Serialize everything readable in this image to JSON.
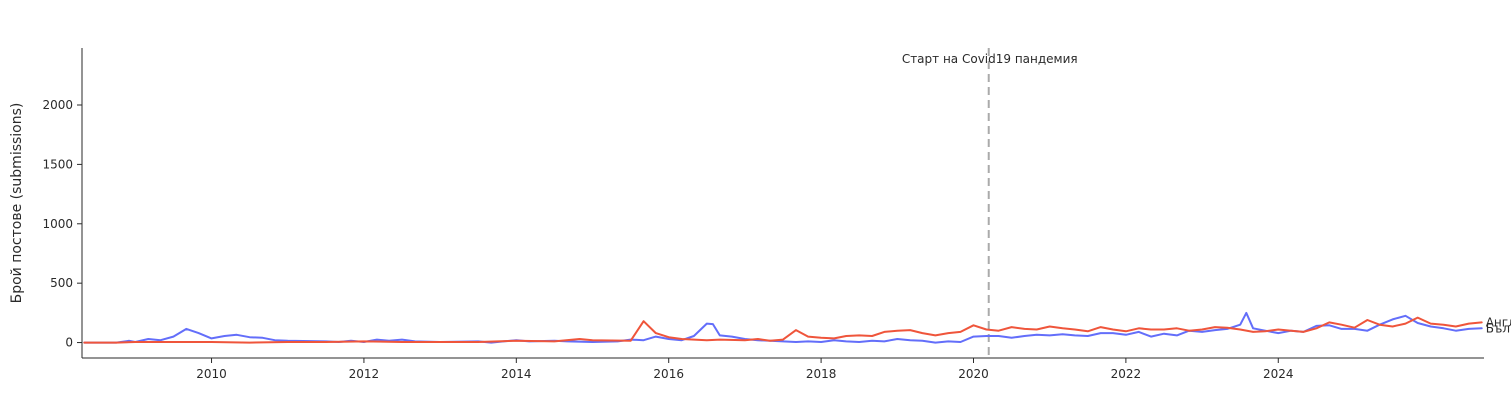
{
  "chart_data": {
    "type": "line",
    "title": "",
    "xlabel": "",
    "ylabel": "Брой постове (submissions)",
    "xlim": [
      2008.3,
      2026.7
    ],
    "ylim": [
      -130,
      2480
    ],
    "xticks": [
      2010,
      2012,
      2014,
      2016,
      2018,
      2020,
      2022,
      2024
    ],
    "yticks": [
      0,
      500,
      1000,
      1500,
      2000
    ],
    "grid": false,
    "legend": "none",
    "vline": {
      "x": 2020.2,
      "label": "Старт на Covid19 пандемия",
      "color": "#aaaaaa"
    },
    "series": [
      {
        "name": "Български",
        "color": "#636efa",
        "points": [
          [
            2008.33,
            0
          ],
          [
            2008.75,
            0
          ],
          [
            2008.92,
            15
          ],
          [
            2009.0,
            5
          ],
          [
            2009.17,
            30
          ],
          [
            2009.33,
            20
          ],
          [
            2009.5,
            50
          ],
          [
            2009.67,
            115
          ],
          [
            2009.83,
            80
          ],
          [
            2010.0,
            35
          ],
          [
            2010.17,
            55
          ],
          [
            2010.33,
            65
          ],
          [
            2010.5,
            45
          ],
          [
            2010.67,
            40
          ],
          [
            2010.83,
            20
          ],
          [
            2011.0,
            15
          ],
          [
            2011.5,
            10
          ],
          [
            2011.67,
            5
          ],
          [
            2011.83,
            15
          ],
          [
            2012.0,
            5
          ],
          [
            2012.17,
            25
          ],
          [
            2012.33,
            15
          ],
          [
            2012.5,
            25
          ],
          [
            2012.67,
            10
          ],
          [
            2013.0,
            5
          ],
          [
            2013.5,
            10
          ],
          [
            2013.67,
            0
          ],
          [
            2013.83,
            10
          ],
          [
            2014.0,
            20
          ],
          [
            2014.17,
            10
          ],
          [
            2014.5,
            15
          ],
          [
            2014.67,
            10
          ],
          [
            2015.0,
            5
          ],
          [
            2015.33,
            10
          ],
          [
            2015.5,
            25
          ],
          [
            2015.67,
            20
          ],
          [
            2015.83,
            50
          ],
          [
            2016.0,
            30
          ],
          [
            2016.17,
            20
          ],
          [
            2016.33,
            55
          ],
          [
            2016.5,
            160
          ],
          [
            2016.58,
            155
          ],
          [
            2016.67,
            60
          ],
          [
            2016.83,
            50
          ],
          [
            2017.0,
            30
          ],
          [
            2017.17,
            20
          ],
          [
            2017.33,
            15
          ],
          [
            2017.5,
            10
          ],
          [
            2017.67,
            5
          ],
          [
            2017.83,
            10
          ],
          [
            2018.0,
            5
          ],
          [
            2018.17,
            20
          ],
          [
            2018.33,
            10
          ],
          [
            2018.5,
            5
          ],
          [
            2018.67,
            15
          ],
          [
            2018.83,
            10
          ],
          [
            2019.0,
            30
          ],
          [
            2019.17,
            20
          ],
          [
            2019.33,
            15
          ],
          [
            2019.5,
            0
          ],
          [
            2019.67,
            10
          ],
          [
            2019.83,
            5
          ],
          [
            2020.0,
            50
          ],
          [
            2020.17,
            55
          ],
          [
            2020.33,
            55
          ],
          [
            2020.5,
            40
          ],
          [
            2020.67,
            55
          ],
          [
            2020.83,
            65
          ],
          [
            2021.0,
            60
          ],
          [
            2021.17,
            70
          ],
          [
            2021.33,
            60
          ],
          [
            2021.5,
            55
          ],
          [
            2021.67,
            80
          ],
          [
            2021.83,
            80
          ],
          [
            2022.0,
            65
          ],
          [
            2022.17,
            90
          ],
          [
            2022.33,
            50
          ],
          [
            2022.5,
            75
          ],
          [
            2022.67,
            60
          ],
          [
            2022.83,
            100
          ],
          [
            2023.0,
            90
          ],
          [
            2023.17,
            105
          ],
          [
            2023.33,
            115
          ],
          [
            2023.5,
            150
          ],
          [
            2023.58,
            250
          ],
          [
            2023.67,
            120
          ],
          [
            2023.83,
            100
          ],
          [
            2024.0,
            80
          ],
          [
            2024.17,
            100
          ],
          [
            2024.33,
            90
          ],
          [
            2024.5,
            140
          ],
          [
            2024.67,
            145
          ],
          [
            2024.83,
            115
          ],
          [
            2025.0,
            115
          ],
          [
            2025.17,
            100
          ],
          [
            2025.33,
            150
          ],
          [
            2025.5,
            195
          ],
          [
            2025.67,
            225
          ],
          [
            2025.83,
            165
          ],
          [
            2026.0,
            135
          ],
          [
            2026.17,
            120
          ],
          [
            2026.33,
            100
          ],
          [
            2026.5,
            115
          ],
          [
            2026.67,
            120
          ]
        ]
      },
      {
        "name": "Английски",
        "color": "#ef553b",
        "points": [
          [
            2008.33,
            0
          ],
          [
            2008.75,
            0
          ],
          [
            2009.0,
            5
          ],
          [
            2009.5,
            5
          ],
          [
            2010.0,
            5
          ],
          [
            2010.5,
            0
          ],
          [
            2011.0,
            5
          ],
          [
            2011.5,
            5
          ],
          [
            2012.0,
            10
          ],
          [
            2012.5,
            5
          ],
          [
            2013.0,
            5
          ],
          [
            2013.5,
            5
          ],
          [
            2014.0,
            15
          ],
          [
            2014.5,
            10
          ],
          [
            2014.83,
            30
          ],
          [
            2015.0,
            20
          ],
          [
            2015.5,
            15
          ],
          [
            2015.67,
            180
          ],
          [
            2015.83,
            80
          ],
          [
            2016.0,
            45
          ],
          [
            2016.17,
            30
          ],
          [
            2016.5,
            20
          ],
          [
            2016.67,
            25
          ],
          [
            2017.0,
            20
          ],
          [
            2017.17,
            30
          ],
          [
            2017.33,
            15
          ],
          [
            2017.5,
            25
          ],
          [
            2017.67,
            105
          ],
          [
            2017.83,
            50
          ],
          [
            2018.0,
            40
          ],
          [
            2018.17,
            35
          ],
          [
            2018.33,
            55
          ],
          [
            2018.5,
            60
          ],
          [
            2018.67,
            55
          ],
          [
            2018.83,
            90
          ],
          [
            2019.0,
            100
          ],
          [
            2019.17,
            105
          ],
          [
            2019.33,
            80
          ],
          [
            2019.5,
            60
          ],
          [
            2019.67,
            80
          ],
          [
            2019.83,
            90
          ],
          [
            2020.0,
            145
          ],
          [
            2020.17,
            110
          ],
          [
            2020.33,
            100
          ],
          [
            2020.5,
            130
          ],
          [
            2020.67,
            115
          ],
          [
            2020.83,
            110
          ],
          [
            2021.0,
            135
          ],
          [
            2021.17,
            120
          ],
          [
            2021.33,
            110
          ],
          [
            2021.5,
            95
          ],
          [
            2021.67,
            130
          ],
          [
            2021.83,
            110
          ],
          [
            2022.0,
            95
          ],
          [
            2022.17,
            120
          ],
          [
            2022.33,
            110
          ],
          [
            2022.5,
            110
          ],
          [
            2022.67,
            120
          ],
          [
            2022.83,
            100
          ],
          [
            2023.0,
            110
          ],
          [
            2023.17,
            130
          ],
          [
            2023.33,
            125
          ],
          [
            2023.5,
            110
          ],
          [
            2023.67,
            90
          ],
          [
            2023.83,
            95
          ],
          [
            2024.0,
            110
          ],
          [
            2024.17,
            100
          ],
          [
            2024.33,
            90
          ],
          [
            2024.5,
            120
          ],
          [
            2024.67,
            170
          ],
          [
            2024.83,
            150
          ],
          [
            2025.0,
            125
          ],
          [
            2025.17,
            190
          ],
          [
            2025.33,
            150
          ],
          [
            2025.5,
            135
          ],
          [
            2025.67,
            160
          ],
          [
            2025.83,
            210
          ],
          [
            2026.0,
            160
          ],
          [
            2026.17,
            150
          ],
          [
            2026.33,
            135
          ],
          [
            2026.5,
            160
          ],
          [
            2026.67,
            170
          ]
        ]
      }
    ]
  }
}
